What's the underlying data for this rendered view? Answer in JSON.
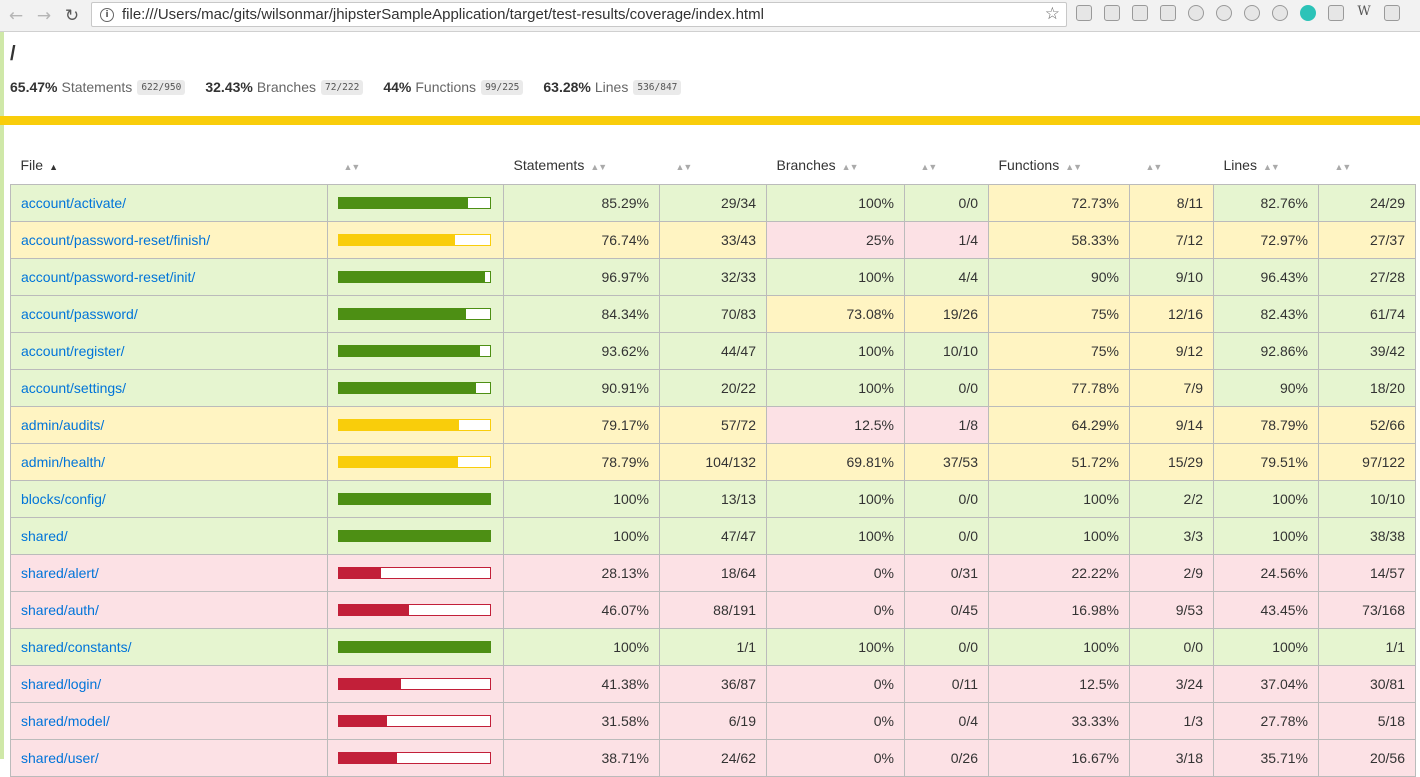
{
  "browser": {
    "url": "file:///Users/mac/gits/wilsonmar/jhipsterSampleApplication/target/test-results/coverage/index.html"
  },
  "page": {
    "path": "/",
    "summary": [
      {
        "pct": "65.47%",
        "label": "Statements",
        "fraction": "622/950"
      },
      {
        "pct": "32.43%",
        "label": "Branches",
        "fraction": "72/222"
      },
      {
        "pct": "44%",
        "label": "Functions",
        "fraction": "99/225"
      },
      {
        "pct": "63.28%",
        "label": "Lines",
        "fraction": "536/847"
      }
    ],
    "status_color": "#f9cd0b"
  },
  "table": {
    "headers": {
      "file": "File",
      "statements": "Statements",
      "branches": "Branches",
      "functions": "Functions",
      "lines": "Lines"
    },
    "rows": [
      {
        "file": "account/activate/",
        "level": "high",
        "bar": 0.8529,
        "s_pct": "85.29%",
        "s_abs": "29/34",
        "b_pct": "100%",
        "b_abs": "0/0",
        "b_lvl": "high",
        "f_pct": "72.73%",
        "f_abs": "8/11",
        "f_lvl": "medium",
        "l_pct": "82.76%",
        "l_abs": "24/29",
        "l_lvl": "high"
      },
      {
        "file": "account/password-reset/finish/",
        "level": "medium",
        "bar": 0.7674,
        "s_pct": "76.74%",
        "s_abs": "33/43",
        "b_pct": "25%",
        "b_abs": "1/4",
        "b_lvl": "low",
        "f_pct": "58.33%",
        "f_abs": "7/12",
        "f_lvl": "medium",
        "l_pct": "72.97%",
        "l_abs": "27/37",
        "l_lvl": "medium"
      },
      {
        "file": "account/password-reset/init/",
        "level": "high",
        "bar": 0.9697,
        "s_pct": "96.97%",
        "s_abs": "32/33",
        "b_pct": "100%",
        "b_abs": "4/4",
        "b_lvl": "high",
        "f_pct": "90%",
        "f_abs": "9/10",
        "f_lvl": "high",
        "l_pct": "96.43%",
        "l_abs": "27/28",
        "l_lvl": "high"
      },
      {
        "file": "account/password/",
        "level": "high",
        "bar": 0.8434,
        "s_pct": "84.34%",
        "s_abs": "70/83",
        "b_pct": "73.08%",
        "b_abs": "19/26",
        "b_lvl": "medium",
        "f_pct": "75%",
        "f_abs": "12/16",
        "f_lvl": "medium",
        "l_pct": "82.43%",
        "l_abs": "61/74",
        "l_lvl": "high"
      },
      {
        "file": "account/register/",
        "level": "high",
        "bar": 0.9362,
        "s_pct": "93.62%",
        "s_abs": "44/47",
        "b_pct": "100%",
        "b_abs": "10/10",
        "b_lvl": "high",
        "f_pct": "75%",
        "f_abs": "9/12",
        "f_lvl": "medium",
        "l_pct": "92.86%",
        "l_abs": "39/42",
        "l_lvl": "high"
      },
      {
        "file": "account/settings/",
        "level": "high",
        "bar": 0.9091,
        "s_pct": "90.91%",
        "s_abs": "20/22",
        "b_pct": "100%",
        "b_abs": "0/0",
        "b_lvl": "high",
        "f_pct": "77.78%",
        "f_abs": "7/9",
        "f_lvl": "medium",
        "l_pct": "90%",
        "l_abs": "18/20",
        "l_lvl": "high"
      },
      {
        "file": "admin/audits/",
        "level": "medium",
        "bar": 0.7917,
        "s_pct": "79.17%",
        "s_abs": "57/72",
        "b_pct": "12.5%",
        "b_abs": "1/8",
        "b_lvl": "low",
        "f_pct": "64.29%",
        "f_abs": "9/14",
        "f_lvl": "medium",
        "l_pct": "78.79%",
        "l_abs": "52/66",
        "l_lvl": "medium"
      },
      {
        "file": "admin/health/",
        "level": "medium",
        "bar": 0.7879,
        "s_pct": "78.79%",
        "s_abs": "104/132",
        "b_pct": "69.81%",
        "b_abs": "37/53",
        "b_lvl": "medium",
        "f_pct": "51.72%",
        "f_abs": "15/29",
        "f_lvl": "medium",
        "l_pct": "79.51%",
        "l_abs": "97/122",
        "l_lvl": "medium"
      },
      {
        "file": "blocks/config/",
        "level": "high",
        "bar": 1.0,
        "s_pct": "100%",
        "s_abs": "13/13",
        "b_pct": "100%",
        "b_abs": "0/0",
        "b_lvl": "high",
        "f_pct": "100%",
        "f_abs": "2/2",
        "f_lvl": "high",
        "l_pct": "100%",
        "l_abs": "10/10",
        "l_lvl": "high"
      },
      {
        "file": "shared/",
        "level": "high",
        "bar": 1.0,
        "s_pct": "100%",
        "s_abs": "47/47",
        "b_pct": "100%",
        "b_abs": "0/0",
        "b_lvl": "high",
        "f_pct": "100%",
        "f_abs": "3/3",
        "f_lvl": "high",
        "l_pct": "100%",
        "l_abs": "38/38",
        "l_lvl": "high"
      },
      {
        "file": "shared/alert/",
        "level": "low",
        "bar": 0.2813,
        "s_pct": "28.13%",
        "s_abs": "18/64",
        "b_pct": "0%",
        "b_abs": "0/31",
        "b_lvl": "low",
        "f_pct": "22.22%",
        "f_abs": "2/9",
        "f_lvl": "low",
        "l_pct": "24.56%",
        "l_abs": "14/57",
        "l_lvl": "low"
      },
      {
        "file": "shared/auth/",
        "level": "low",
        "bar": 0.4607,
        "s_pct": "46.07%",
        "s_abs": "88/191",
        "b_pct": "0%",
        "b_abs": "0/45",
        "b_lvl": "low",
        "f_pct": "16.98%",
        "f_abs": "9/53",
        "f_lvl": "low",
        "l_pct": "43.45%",
        "l_abs": "73/168",
        "l_lvl": "low"
      },
      {
        "file": "shared/constants/",
        "level": "high",
        "bar": 1.0,
        "s_pct": "100%",
        "s_abs": "1/1",
        "b_pct": "100%",
        "b_abs": "0/0",
        "b_lvl": "high",
        "f_pct": "100%",
        "f_abs": "0/0",
        "f_lvl": "high",
        "l_pct": "100%",
        "l_abs": "1/1",
        "l_lvl": "high"
      },
      {
        "file": "shared/login/",
        "level": "low",
        "bar": 0.4138,
        "s_pct": "41.38%",
        "s_abs": "36/87",
        "b_pct": "0%",
        "b_abs": "0/11",
        "b_lvl": "low",
        "f_pct": "12.5%",
        "f_abs": "3/24",
        "f_lvl": "low",
        "l_pct": "37.04%",
        "l_abs": "30/81",
        "l_lvl": "low"
      },
      {
        "file": "shared/model/",
        "level": "low",
        "bar": 0.3158,
        "s_pct": "31.58%",
        "s_abs": "6/19",
        "b_pct": "0%",
        "b_abs": "0/4",
        "b_lvl": "low",
        "f_pct": "33.33%",
        "f_abs": "1/3",
        "f_lvl": "low",
        "l_pct": "27.78%",
        "l_abs": "5/18",
        "l_lvl": "low"
      },
      {
        "file": "shared/user/",
        "level": "low",
        "bar": 0.3871,
        "s_pct": "38.71%",
        "s_abs": "24/62",
        "b_pct": "0%",
        "b_abs": "0/26",
        "b_lvl": "low",
        "f_pct": "16.67%",
        "f_abs": "3/18",
        "f_lvl": "low",
        "l_pct": "35.71%",
        "l_abs": "20/56",
        "l_lvl": "low"
      }
    ]
  },
  "icons": {
    "back": "arrow-left-icon",
    "forward": "arrow-right-icon",
    "reload": "reload-icon",
    "info": "info-icon",
    "bookmark": "star-icon"
  }
}
